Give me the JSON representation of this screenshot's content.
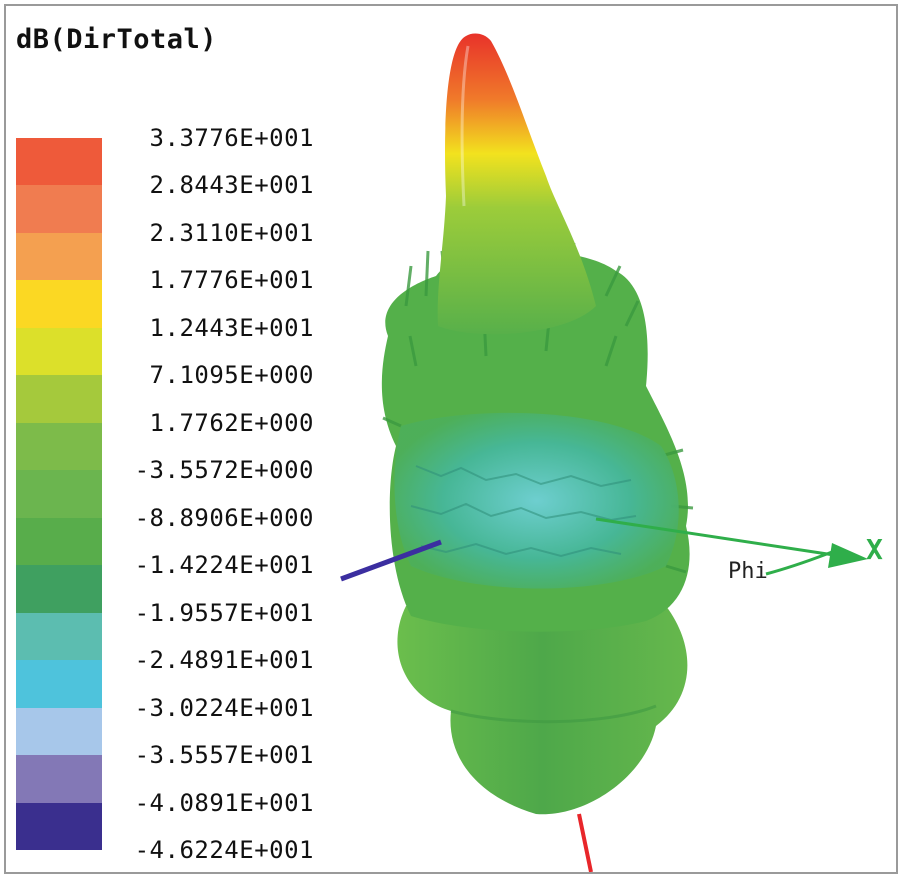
{
  "title": "dB(DirTotal)",
  "legend": {
    "ticks": [
      "3.3776E+001",
      "2.8443E+001",
      "2.3110E+001",
      "1.7776E+001",
      "1.2443E+001",
      "7.1095E+000",
      "1.7762E+000",
      "-3.5572E+000",
      "-8.8906E+000",
      "-1.4224E+001",
      "-1.9557E+001",
      "-2.4891E+001",
      "-3.0224E+001",
      "-3.5557E+001",
      "-4.0891E+001",
      "-4.6224E+001"
    ],
    "colors": [
      "#ee5a3a",
      "#f07c50",
      "#f4a050",
      "#fbd823",
      "#dce02a",
      "#a5c93c",
      "#7dbb4a",
      "#6bb54f",
      "#58ad4b",
      "#3fa060",
      "#5cbdb0",
      "#4ec3dc",
      "#a7c7ea",
      "#8378b6",
      "#3a2f8e"
    ]
  },
  "axes": {
    "x_label": "X",
    "phi_label": "Phi",
    "x_axis_color": "#2fae4a",
    "y_axis_color": "#3b2ea0",
    "z_axis_color": "#e8262a"
  },
  "pattern": {
    "peak_color": "#e8322a",
    "body_color": "#55b24a",
    "null_color": "#47b7b5"
  }
}
